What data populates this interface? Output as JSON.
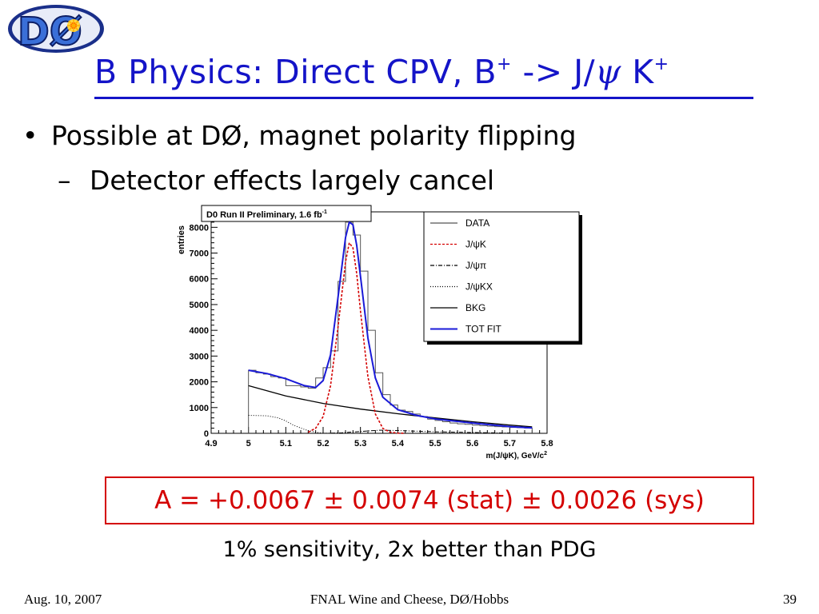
{
  "logo": {
    "text": "DØ"
  },
  "slide": {
    "title_main": "B Physics: Direct CPV, B",
    "title_sup1": "+",
    "title_mid": " -> J/",
    "title_psi": "ψ",
    "title_k": " K",
    "title_sup2": "+",
    "bullet_mark": "•",
    "bullet1": "Possible at DØ, magnet polarity flipping",
    "sub_mark": "–",
    "bullet2": "Detector effects largely cancel",
    "result": "A = +0.0067 ± 0.0074 (stat) ± 0.0026 (sys)",
    "sensitivity": "1% sensitivity, 2x better than PDG",
    "footer_left": "Aug. 10, 2007",
    "footer_center": "FNAL Wine and Cheese, DØ/Hobbs",
    "footer_right": "39"
  },
  "colors": {
    "title": "#1414c8",
    "result": "#d40000",
    "fit_total": "#1a1ad8",
    "fit_signal": "#d40000"
  },
  "chart_data": {
    "type": "line",
    "title": "D0 Run II Preliminary, 1.6 fb",
    "title_sup": "-1",
    "xlabel": "m(J/ψK), GeV/c",
    "xlabel_sup": "2",
    "ylabel": "entries",
    "xlim": [
      4.9,
      5.8
    ],
    "ylim": [
      0,
      8600
    ],
    "xticks": [
      "4.9",
      "5",
      "5.1",
      "5.2",
      "5.3",
      "5.4",
      "5.5",
      "5.6",
      "5.7",
      "5.8"
    ],
    "yticks": [
      "0",
      "1000",
      "2000",
      "3000",
      "4000",
      "5000",
      "6000",
      "7000",
      "8000"
    ],
    "legend_position": "top-right",
    "legend": [
      {
        "label": "DATA",
        "style": "solid",
        "color": "#555555"
      },
      {
        "label": "J/ψK",
        "style": "dashed",
        "color": "#d40000"
      },
      {
        "label": "J/ψπ",
        "style": "dashdot",
        "color": "#000000"
      },
      {
        "label": "J/ψKX",
        "style": "dotted",
        "color": "#000000"
      },
      {
        "label": "BKG",
        "style": "solid",
        "color": "#000000"
      },
      {
        "label": "TOT FIT",
        "style": "solid",
        "color": "#1a1ad8"
      }
    ],
    "data_histogram": {
      "name": "DATA",
      "bin_edges": [
        5.0,
        5.02,
        5.04,
        5.06,
        5.08,
        5.1,
        5.12,
        5.14,
        5.16,
        5.18,
        5.2,
        5.22,
        5.24,
        5.26,
        5.28,
        5.3,
        5.32,
        5.34,
        5.36,
        5.38,
        5.4,
        5.42,
        5.44,
        5.46,
        5.48,
        5.5,
        5.52,
        5.54,
        5.56,
        5.58,
        5.6,
        5.62,
        5.64,
        5.66,
        5.68,
        5.7,
        5.72,
        5.74,
        5.76
      ],
      "values": [
        2450,
        2350,
        2300,
        2200,
        2150,
        1850,
        1850,
        1800,
        1750,
        2150,
        2550,
        3200,
        5900,
        8200,
        7700,
        6300,
        4000,
        2350,
        1500,
        1100,
        900,
        850,
        750,
        650,
        550,
        500,
        450,
        400,
        370,
        350,
        320,
        300,
        280,
        260,
        250,
        230,
        220,
        200
      ]
    },
    "series": [
      {
        "name": "TOT FIT",
        "x": [
          5.0,
          5.05,
          5.1,
          5.15,
          5.18,
          5.2,
          5.22,
          5.24,
          5.26,
          5.27,
          5.28,
          5.29,
          5.3,
          5.32,
          5.34,
          5.36,
          5.4,
          5.45,
          5.5,
          5.6,
          5.7,
          5.76
        ],
        "y": [
          2450,
          2320,
          2120,
          1850,
          1780,
          2050,
          3050,
          5300,
          7600,
          8200,
          8100,
          7300,
          6100,
          3700,
          2150,
          1400,
          920,
          700,
          560,
          400,
          260,
          210
        ]
      },
      {
        "name": "J/ψK",
        "x": [
          5.16,
          5.18,
          5.2,
          5.22,
          5.24,
          5.26,
          5.27,
          5.28,
          5.29,
          5.3,
          5.32,
          5.34,
          5.36,
          5.38,
          5.4,
          5.42
        ],
        "y": [
          40,
          200,
          650,
          1850,
          4150,
          6650,
          7400,
          7200,
          6200,
          4750,
          2200,
          750,
          190,
          40,
          10,
          0
        ]
      },
      {
        "name": "BKG",
        "x": [
          5.0,
          5.1,
          5.2,
          5.3,
          5.4,
          5.5,
          5.6,
          5.7,
          5.76
        ],
        "y": [
          1850,
          1450,
          1160,
          940,
          760,
          600,
          450,
          320,
          250
        ]
      },
      {
        "name": "J/ψKX",
        "x": [
          5.0,
          5.05,
          5.08,
          5.1,
          5.12,
          5.15,
          5.18,
          5.2
        ],
        "y": [
          700,
          680,
          600,
          480,
          320,
          150,
          40,
          0
        ]
      },
      {
        "name": "J/ψπ",
        "x": [
          5.2,
          5.25,
          5.3,
          5.35,
          5.4,
          5.5,
          5.6,
          5.7
        ],
        "y": [
          0,
          20,
          70,
          120,
          110,
          60,
          30,
          10
        ]
      }
    ]
  }
}
